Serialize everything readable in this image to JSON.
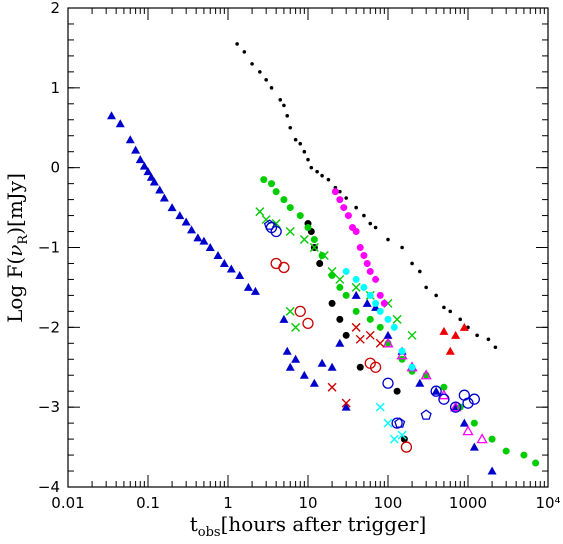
{
  "chart_data": {
    "type": "scatter",
    "xlabel": "t_obs[hours after trigger]",
    "xlabel_main": "t",
    "xlabel_sub": "obs",
    "xlabel_rest": "[hours after trigger]",
    "ylabel": "Log F(ν_R)[mJy]",
    "ylabel_pre": "Log F(",
    "ylabel_nu": "ν",
    "ylabel_sub": "R",
    "ylabel_post": ")[mJy]",
    "xscale": "log",
    "xlim": [
      0.01,
      10000
    ],
    "ylim": [
      -4,
      2
    ],
    "x_ticks": [
      {
        "value": 0.01,
        "label": "0.01"
      },
      {
        "value": 0.1,
        "label": "0.1"
      },
      {
        "value": 1,
        "label": "1"
      },
      {
        "value": 10,
        "label": "10"
      },
      {
        "value": 100,
        "label": "100"
      },
      {
        "value": 1000,
        "label": "1000"
      },
      {
        "value": 10000,
        "label": "10⁴"
      }
    ],
    "y_ticks": [
      {
        "value": 2,
        "label": "2"
      },
      {
        "value": 1,
        "label": "1"
      },
      {
        "value": 0,
        "label": "0"
      },
      {
        "value": -1,
        "label": "−1"
      },
      {
        "value": -2,
        "label": "−2"
      },
      {
        "value": -3,
        "label": "−3"
      },
      {
        "value": -4,
        "label": "−4"
      }
    ],
    "series": [
      {
        "color": "#0000cc",
        "marker": "triangle",
        "points": [
          [
            0.035,
            0.65
          ],
          [
            0.045,
            0.55
          ],
          [
            0.06,
            0.35
          ],
          [
            0.07,
            0.22
          ],
          [
            0.08,
            0.1
          ],
          [
            0.09,
            0.02
          ],
          [
            0.1,
            -0.05
          ],
          [
            0.11,
            -0.12
          ],
          [
            0.12,
            -0.18
          ],
          [
            0.14,
            -0.28
          ],
          [
            0.16,
            -0.38
          ],
          [
            0.2,
            -0.5
          ],
          [
            0.25,
            -0.6
          ],
          [
            0.3,
            -0.68
          ],
          [
            0.35,
            -0.78
          ],
          [
            0.42,
            -0.88
          ],
          [
            0.5,
            -0.92
          ],
          [
            0.6,
            -1.0
          ],
          [
            0.75,
            -1.1
          ],
          [
            0.9,
            -1.2
          ],
          [
            1.1,
            -1.27
          ],
          [
            1.4,
            -1.35
          ],
          [
            1.8,
            -1.5
          ],
          [
            2.2,
            -1.55
          ],
          [
            5,
            -1.9
          ],
          [
            5.5,
            -2.3
          ],
          [
            6,
            -2.5
          ],
          [
            7,
            -2.4
          ],
          [
            9,
            -2.6
          ],
          [
            12,
            -2.7
          ],
          [
            15,
            -2.45
          ],
          [
            20,
            -2.5
          ],
          [
            25,
            -2.2
          ],
          [
            30,
            -3.0
          ],
          [
            40,
            -1.6
          ],
          [
            55,
            -1.7
          ],
          [
            70,
            -1.75
          ],
          [
            100,
            -2.1
          ],
          [
            150,
            -2.3
          ],
          [
            200,
            -2.5
          ],
          [
            250,
            -2.7
          ],
          [
            400,
            -2.8
          ],
          [
            700,
            -3.0
          ],
          [
            900,
            -3.2
          ],
          [
            1200,
            -3.5
          ],
          [
            2000,
            -3.8
          ]
        ]
      },
      {
        "color": "#000000",
        "marker": "dot",
        "points": [
          [
            1.3,
            1.55
          ],
          [
            1.6,
            1.45
          ],
          [
            2,
            1.3
          ],
          [
            2.5,
            1.2
          ],
          [
            3,
            1.1
          ],
          [
            3.5,
            1.0
          ],
          [
            4.5,
            0.85
          ],
          [
            5,
            0.78
          ],
          [
            5.5,
            0.65
          ],
          [
            6,
            0.5
          ],
          [
            7,
            0.35
          ],
          [
            8,
            0.3
          ],
          [
            9,
            0.2
          ],
          [
            10,
            0.1
          ],
          [
            11,
            0.0
          ],
          [
            13,
            -0.05
          ],
          [
            15,
            -0.1
          ],
          [
            18,
            -0.15
          ],
          [
            22,
            -0.25
          ],
          [
            25,
            -0.3
          ],
          [
            30,
            -0.38
          ],
          [
            40,
            -0.5
          ],
          [
            50,
            -0.6
          ],
          [
            60,
            -0.7
          ],
          [
            70,
            -0.75
          ],
          [
            100,
            -0.9
          ],
          [
            150,
            -1.0
          ],
          [
            200,
            -1.2
          ],
          [
            250,
            -1.3
          ],
          [
            300,
            -1.5
          ],
          [
            400,
            -1.6
          ],
          [
            500,
            -1.75
          ],
          [
            600,
            -1.8
          ],
          [
            800,
            -1.9
          ],
          [
            1000,
            -2.0
          ],
          [
            1300,
            -2.1
          ],
          [
            1800,
            -2.15
          ],
          [
            2200,
            -2.25
          ]
        ]
      },
      {
        "color": "#000000",
        "marker": "filled-circle",
        "points": [
          [
            10,
            -0.7
          ],
          [
            11,
            -0.8
          ],
          [
            12,
            -1.0
          ],
          [
            14,
            -1.2
          ],
          [
            20,
            -1.7
          ],
          [
            25,
            -1.9
          ],
          [
            30,
            -2.1
          ],
          [
            45,
            -2.5
          ],
          [
            130,
            -2.8
          ],
          [
            160,
            -3.4
          ]
        ]
      },
      {
        "color": "#00cc00",
        "marker": "filled-circle",
        "points": [
          [
            2.8,
            -0.15
          ],
          [
            3.5,
            -0.2
          ],
          [
            4,
            -0.3
          ],
          [
            5,
            -0.4
          ],
          [
            6,
            -0.5
          ],
          [
            8,
            -0.6
          ],
          [
            10,
            -0.75
          ],
          [
            12,
            -0.9
          ],
          [
            15,
            -1.1
          ],
          [
            20,
            -1.35
          ],
          [
            25,
            -1.5
          ],
          [
            30,
            -1.6
          ],
          [
            40,
            -1.8
          ],
          [
            60,
            -1.9
          ],
          [
            80,
            -2.0
          ],
          [
            100,
            -2.2
          ],
          [
            150,
            -2.4
          ],
          [
            200,
            -2.55
          ],
          [
            300,
            -2.6
          ],
          [
            500,
            -2.75
          ],
          [
            800,
            -3.0
          ],
          [
            1200,
            -3.2
          ],
          [
            2000,
            -3.4
          ],
          [
            3000,
            -3.55
          ],
          [
            5000,
            -3.6
          ],
          [
            7000,
            -3.7
          ]
        ]
      },
      {
        "color": "#00cc00",
        "marker": "x",
        "points": [
          [
            2.5,
            -0.55
          ],
          [
            3,
            -0.65
          ],
          [
            4,
            -0.7
          ],
          [
            6,
            -0.8
          ],
          [
            9,
            -0.9
          ],
          [
            12,
            -1.0
          ],
          [
            16,
            -1.1
          ],
          [
            20,
            -1.3
          ],
          [
            25,
            -1.4
          ],
          [
            40,
            -1.5
          ],
          [
            60,
            -1.6
          ],
          [
            100,
            -1.7
          ],
          [
            130,
            -1.9
          ],
          [
            200,
            -2.1
          ],
          [
            6,
            -1.8
          ],
          [
            7,
            -2.0
          ]
        ]
      },
      {
        "color": "#ff00ff",
        "marker": "filled-circle",
        "points": [
          [
            22,
            -0.3
          ],
          [
            25,
            -0.4
          ],
          [
            28,
            -0.5
          ],
          [
            32,
            -0.6
          ],
          [
            36,
            -0.75
          ],
          [
            40,
            -0.8
          ],
          [
            45,
            -1.0
          ],
          [
            50,
            -1.1
          ],
          [
            55,
            -1.2
          ],
          [
            60,
            -1.3
          ],
          [
            70,
            -1.4
          ],
          [
            80,
            -1.6
          ],
          [
            90,
            -1.7
          ]
        ]
      },
      {
        "color": "#ff00ff",
        "marker": "triangle-open",
        "points": [
          [
            100,
            -2.2
          ],
          [
            150,
            -2.35
          ],
          [
            200,
            -2.5
          ],
          [
            300,
            -2.6
          ],
          [
            500,
            -2.85
          ],
          [
            700,
            -3.0
          ],
          [
            1000,
            -3.3
          ],
          [
            1500,
            -3.4
          ]
        ]
      },
      {
        "color": "#00ffff",
        "marker": "filled-circle",
        "points": [
          [
            30,
            -1.3
          ],
          [
            40,
            -1.4
          ],
          [
            50,
            -1.5
          ],
          [
            60,
            -1.6
          ],
          [
            70,
            -1.7
          ],
          [
            80,
            -1.8
          ],
          [
            100,
            -1.9
          ],
          [
            120,
            -2.0
          ],
          [
            150,
            -2.3
          ],
          [
            200,
            -2.5
          ]
        ]
      },
      {
        "color": "#00ffff",
        "marker": "x",
        "points": [
          [
            80,
            -3.0
          ],
          [
            100,
            -3.2
          ],
          [
            120,
            -3.4
          ],
          [
            150,
            -3.35
          ]
        ]
      },
      {
        "color": "#cc0000",
        "marker": "circle-open",
        "points": [
          [
            4,
            -1.2
          ],
          [
            5,
            -1.25
          ],
          [
            8,
            -1.8
          ],
          [
            10,
            -1.95
          ],
          [
            60,
            -2.45
          ],
          [
            70,
            -2.5
          ],
          [
            170,
            -3.5
          ]
        ]
      },
      {
        "color": "#cc0000",
        "marker": "x",
        "points": [
          [
            20,
            -2.75
          ],
          [
            30,
            -2.95
          ],
          [
            40,
            -2.0
          ],
          [
            45,
            -2.15
          ],
          [
            60,
            -2.1
          ],
          [
            80,
            -2.2
          ]
        ]
      },
      {
        "color": "#ee0000",
        "marker": "triangle",
        "points": [
          [
            500,
            -2.05
          ],
          [
            700,
            -2.1
          ],
          [
            900,
            -2.0
          ],
          [
            600,
            -2.3
          ]
        ]
      },
      {
        "color": "#0000cc",
        "marker": "circle-open",
        "points": [
          [
            3.5,
            -0.75
          ],
          [
            4,
            -0.8
          ],
          [
            100,
            -2.7
          ],
          [
            130,
            -3.2
          ],
          [
            400,
            -2.8
          ],
          [
            500,
            -2.9
          ],
          [
            700,
            -3.0
          ],
          [
            900,
            -2.85
          ],
          [
            1000,
            -2.95
          ],
          [
            1200,
            -2.9
          ]
        ]
      },
      {
        "color": "#0000cc",
        "marker": "pentagon-open",
        "points": [
          [
            3.3,
            -0.72
          ],
          [
            140,
            -3.2
          ],
          [
            300,
            -3.1
          ]
        ]
      }
    ]
  }
}
